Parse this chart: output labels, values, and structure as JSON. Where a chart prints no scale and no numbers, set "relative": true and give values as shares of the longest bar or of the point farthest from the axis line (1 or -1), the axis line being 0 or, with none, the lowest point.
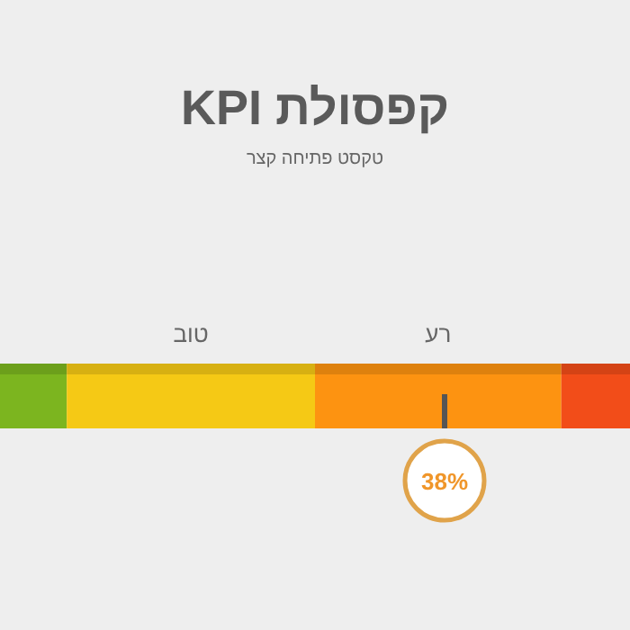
{
  "chart_data": {
    "type": "bar",
    "orientation": "horizontal",
    "stacked": true,
    "relative": true,
    "title": "קפסולת KPI",
    "subtitle": "טקסט פתיחה קצר",
    "categories": [
      null
    ],
    "series": [
      {
        "color": "#7cb51f",
        "values": [
          0.106
        ]
      },
      {
        "name": "טוב",
        "color": "#f5c915",
        "values": [
          0.394
        ]
      },
      {
        "name": "רע",
        "color": "#fd9311",
        "values": [
          0.391
        ]
      },
      {
        "color": "#f24d19",
        "values": [
          0.109
        ]
      }
    ],
    "annotations": [
      "38%"
    ]
  }
}
